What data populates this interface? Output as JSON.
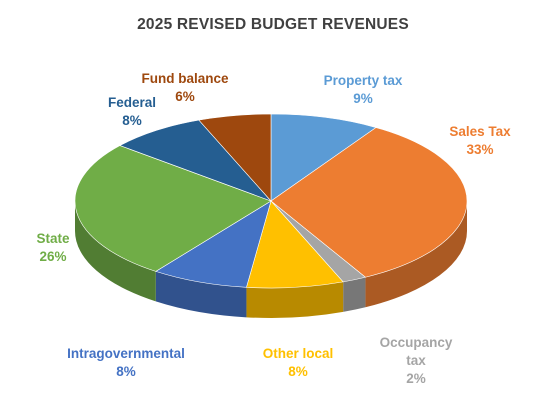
{
  "chart_data": {
    "type": "pie",
    "title": "2025 REVISED BUDGET REVENUES",
    "slices": [
      {
        "label": "Property tax",
        "label_lines": [
          "Property tax"
        ],
        "value": 9,
        "value_label": "9%",
        "color": "#5B9BD5"
      },
      {
        "label": "Sales Tax",
        "label_lines": [
          "Sales Tax"
        ],
        "value": 33,
        "value_label": "33%",
        "color": "#ED7D31"
      },
      {
        "label": "Occupancy tax",
        "label_lines": [
          "Occupancy",
          "tax"
        ],
        "value": 2,
        "value_label": "2%",
        "color": "#A5A5A5"
      },
      {
        "label": "Other local",
        "label_lines": [
          "Other local"
        ],
        "value": 8,
        "value_label": "8%",
        "color": "#FFC000"
      },
      {
        "label": "Intragovernmental",
        "label_lines": [
          "Intragovernmental"
        ],
        "value": 8,
        "value_label": "8%",
        "color": "#4472C4"
      },
      {
        "label": "State",
        "label_lines": [
          "State"
        ],
        "value": 26,
        "value_label": "26%",
        "color": "#70AD47"
      },
      {
        "label": "Federal",
        "label_lines": [
          "Federal"
        ],
        "value": 8,
        "value_label": "8%",
        "color": "#255E91"
      },
      {
        "label": "Fund balance",
        "label_lines": [
          "Fund balance"
        ],
        "value": 6,
        "value_label": "6%",
        "color": "#9E480E"
      }
    ],
    "legend": "none",
    "data_labels": "outside, category name and percentage"
  }
}
